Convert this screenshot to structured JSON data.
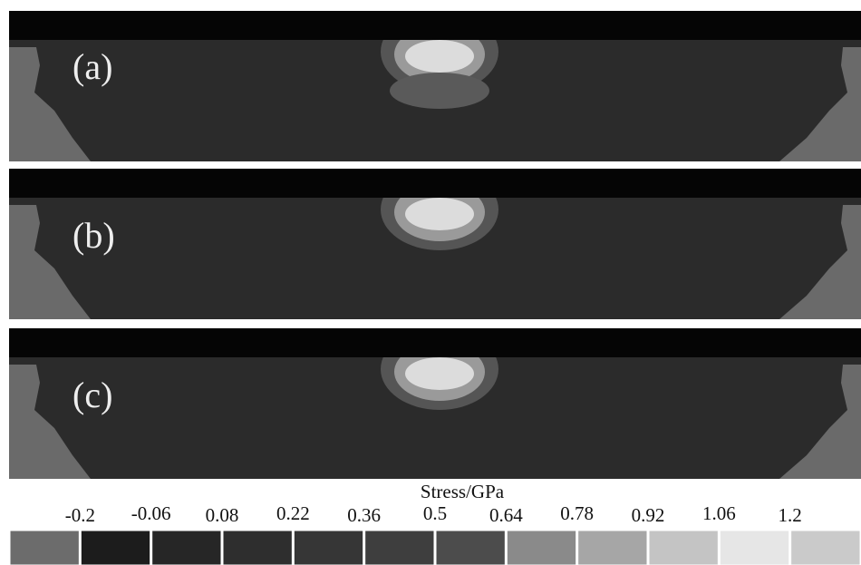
{
  "panels": [
    {
      "label": "(a)"
    },
    {
      "label": "(b)"
    },
    {
      "label": "(c)"
    }
  ],
  "colorbar": {
    "title": "Stress/GPa",
    "ticks": [
      -0.2,
      -0.06,
      0.08,
      0.22,
      0.36,
      0.5,
      0.64,
      0.78,
      0.92,
      1.06,
      1.2
    ],
    "colors": [
      "#6c6c6c",
      "#1c1c1c",
      "#262626",
      "#2e2e2e",
      "#363636",
      "#3e3e3e",
      "#4c4c4c",
      "#8a8a8a",
      "#a6a6a6",
      "#c4c4c4",
      "#e6e6e6",
      "#cacaca"
    ]
  }
}
